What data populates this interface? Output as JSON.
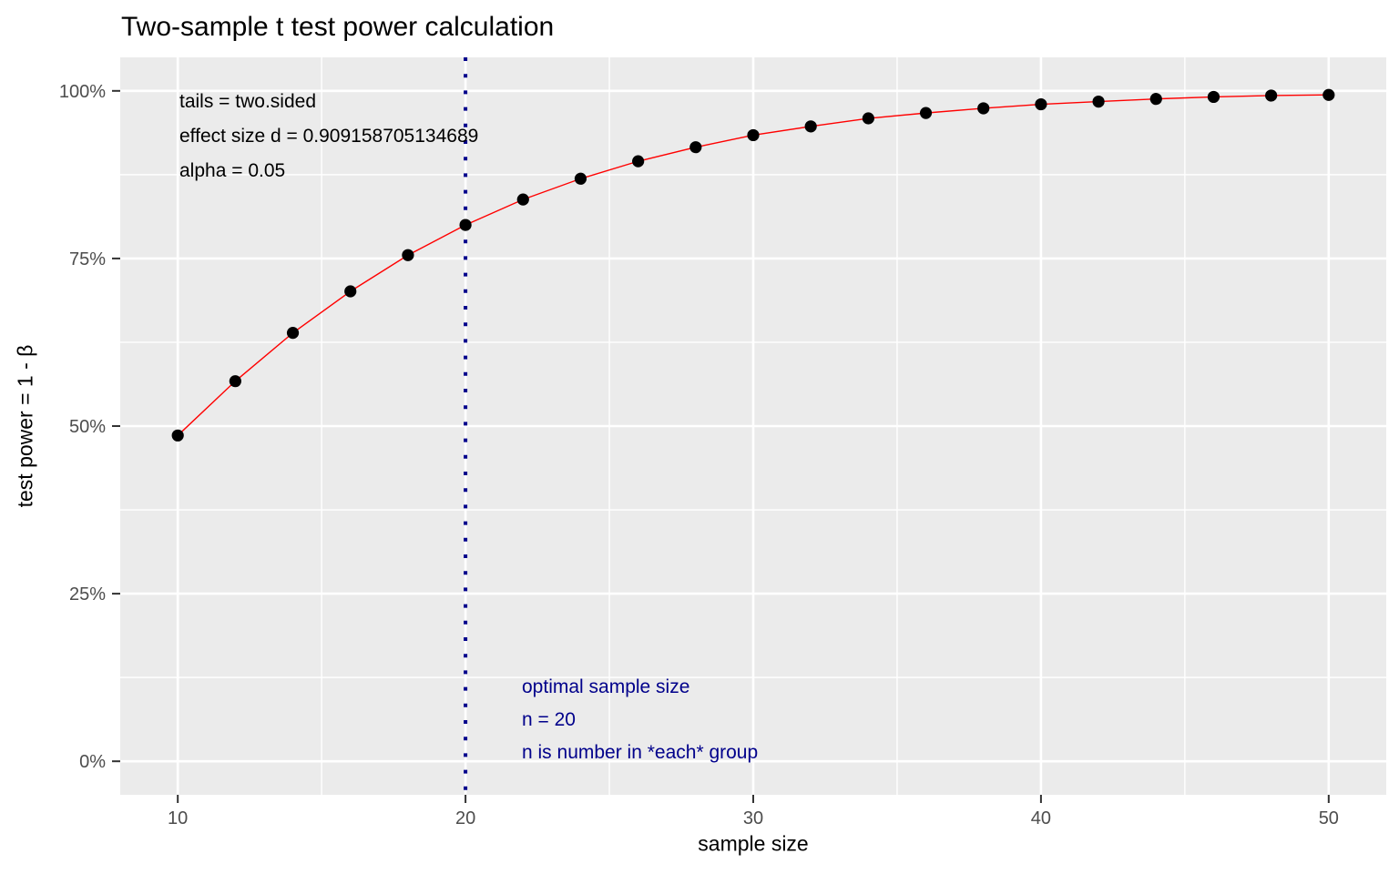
{
  "colors": {
    "panel_bg": "#EBEBEB",
    "grid": "#FFFFFF",
    "tick": "#333333",
    "tick_label": "#4D4D4D",
    "text": "#000000",
    "annotation_blue": "#00008B",
    "curve_red": "#FF0000",
    "point_black": "#000000"
  },
  "annotations": {
    "params": [
      "tails = two.sided",
      "effect size d = 0.909158705134689",
      "alpha = 0.05"
    ],
    "optimal": [
      "optimal sample size",
      "n = 20",
      "n is number in *each* group"
    ]
  },
  "chart_data": {
    "type": "line",
    "title": "Two-sample t test power calculation",
    "xlabel": "sample size",
    "ylabel": "test power = 1 - β",
    "xlim": [
      8,
      52
    ],
    "ylim_percent": [
      -5,
      105
    ],
    "x_ticks": [
      10,
      20,
      30,
      40,
      50
    ],
    "x_tick_labels": [
      "10",
      "20",
      "30",
      "40",
      "50"
    ],
    "x_minor": [
      15,
      25,
      35,
      45
    ],
    "y_ticks_percent": [
      0,
      25,
      50,
      75,
      100
    ],
    "y_tick_labels": [
      "0%",
      "25%",
      "50%",
      "75%",
      "100%"
    ],
    "y_minor_percent": [
      12.5,
      37.5,
      62.5,
      87.5
    ],
    "grid": true,
    "legend": "none",
    "vline_x": 20,
    "series": [
      {
        "name": "power",
        "x": [
          10,
          12,
          14,
          16,
          18,
          20,
          22,
          24,
          26,
          28,
          30,
          32,
          34,
          36,
          38,
          40,
          42,
          44,
          46,
          48,
          50
        ],
        "power_percent": [
          48.6,
          56.7,
          63.9,
          70.1,
          75.5,
          80.0,
          83.8,
          86.9,
          89.5,
          91.6,
          93.4,
          94.7,
          95.9,
          96.7,
          97.4,
          98.0,
          98.4,
          98.8,
          99.1,
          99.3,
          99.4
        ]
      }
    ]
  }
}
